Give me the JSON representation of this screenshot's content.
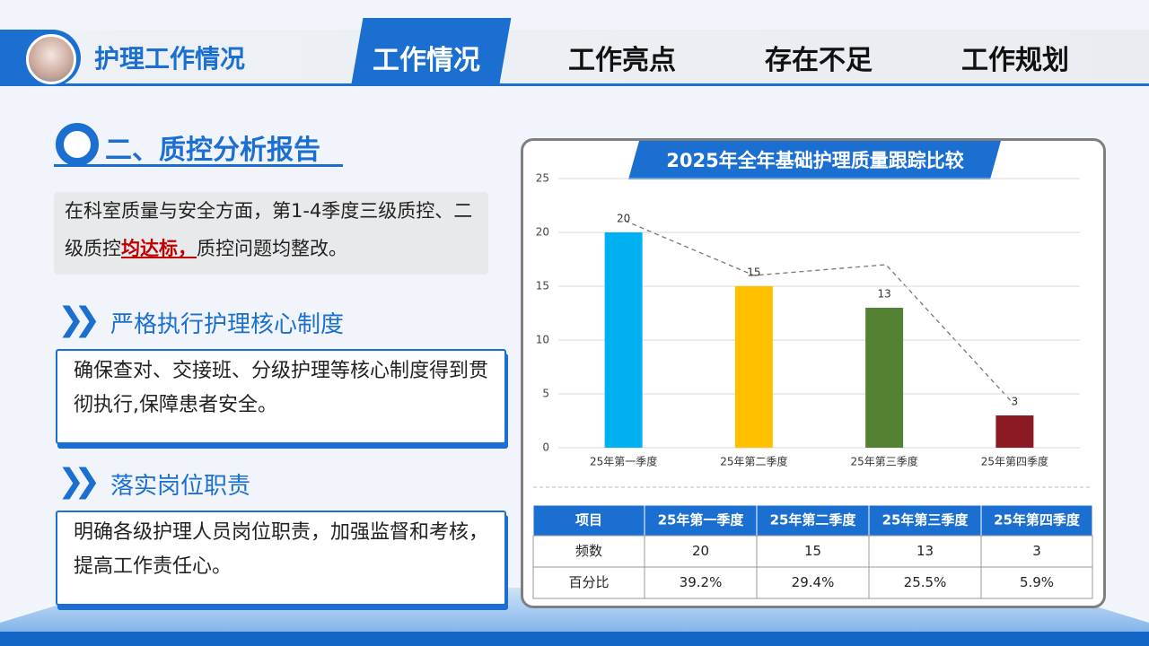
{
  "header": {
    "title": "护理工作情况",
    "tabs": [
      "工作情况",
      "工作亮点",
      "存在不足",
      "工作规划"
    ]
  },
  "section": {
    "title": "二、质控分析报告",
    "summary": {
      "before": "在科室质量与安全方面，第1-4季度三级质控、二级质控",
      "highlight": "均达标，",
      "after": "质控问题均整改。"
    },
    "items": [
      {
        "heading": "严格执行护理核心制度",
        "text": "确保查对、交接班、分级护理等核心制度得到贯彻执行,保障患者安全。"
      },
      {
        "heading": "落实岗位职责",
        "text": "明确各级护理人员岗位职责，加强监督和考核，提高工作责任心。"
      }
    ]
  },
  "chart_data": {
    "type": "bar",
    "title": "2025年全年基础护理质量跟踪比较",
    "categories": [
      "25年第一季度",
      "25年第二季度",
      "25年第三季度",
      "25年第四季度"
    ],
    "values": [
      20,
      15,
      13,
      3
    ],
    "colors": [
      "#00b0f0",
      "#ffc000",
      "#548235",
      "#8b1a24"
    ],
    "ylim": [
      0,
      25
    ],
    "yticks": [
      0,
      5,
      10,
      15,
      20,
      25
    ],
    "grid": true
  },
  "table": {
    "header": [
      "项目",
      "25年第一季度",
      "25年第二季度",
      "25年第三季度",
      "25年第四季度"
    ],
    "rows": [
      [
        "频数",
        "20",
        "15",
        "13",
        "3"
      ],
      [
        "百分比",
        "39.2%",
        "29.4%",
        "25.5%",
        "5.9%"
      ]
    ]
  }
}
